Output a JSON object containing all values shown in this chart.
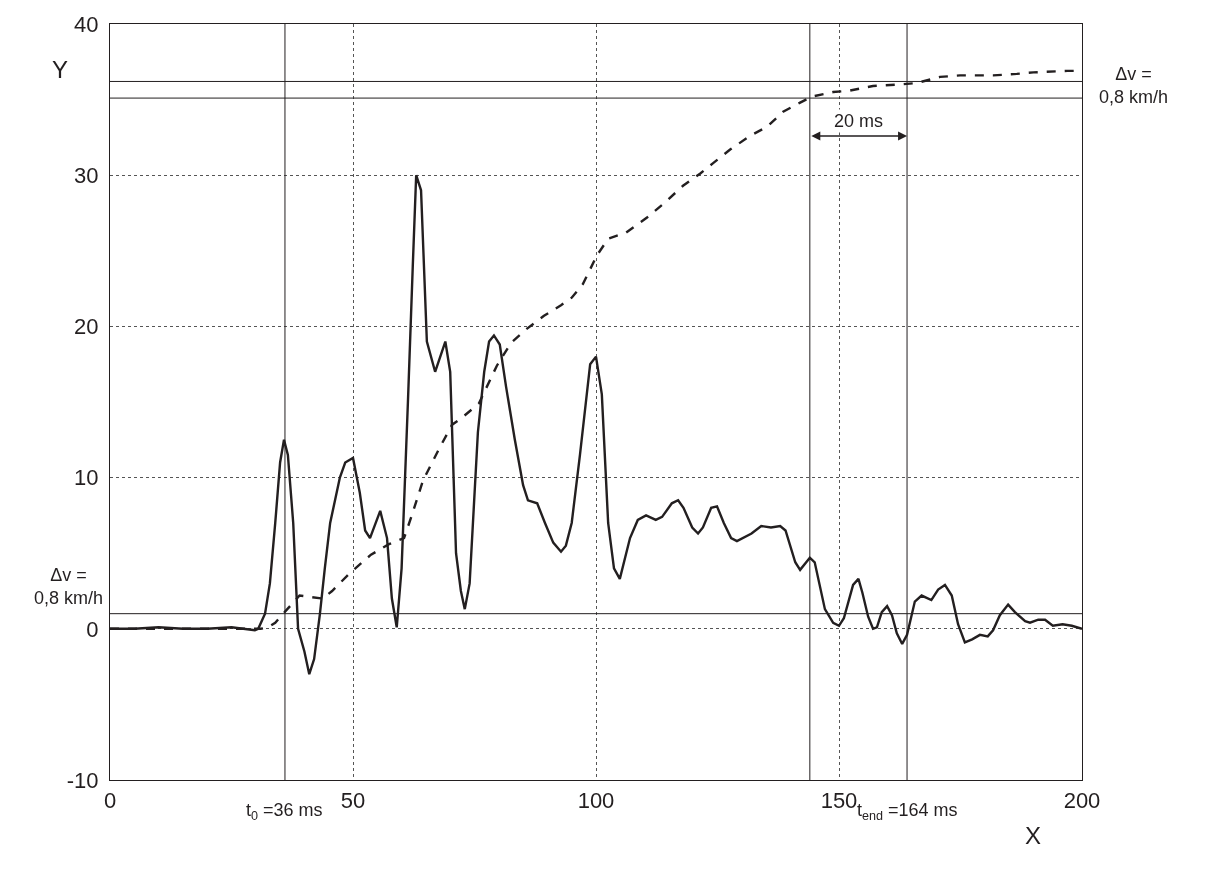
{
  "chart_data": {
    "type": "line",
    "xlabel": "X",
    "ylabel": "Y",
    "xlim": [
      0,
      200
    ],
    "xticks": [
      0,
      50,
      100,
      150,
      200
    ],
    "ylim": [
      -10,
      40
    ],
    "yticks": [
      -10,
      0,
      10,
      20,
      30,
      40
    ],
    "grid": true,
    "marker": "none",
    "series": [
      {
        "color": "#231f20",
        "line_style": "solid",
        "x": [
          0,
          5,
          10,
          15,
          20,
          25,
          29.8,
          30.5,
          31.9,
          32.9,
          34,
          35,
          35.8,
          36.6,
          37.7,
          38.7,
          40,
          41,
          42,
          43.2,
          44.2,
          45.3,
          47.3,
          48.4,
          50,
          51.4,
          52.5,
          53.5,
          55.6,
          57,
          58,
          59,
          60,
          61.3,
          62.3,
          63,
          64,
          65.2,
          66.9,
          69,
          70,
          71.2,
          72.2,
          73,
          74,
          75.7,
          77,
          78,
          79,
          80.2,
          81.5,
          83.3,
          85,
          86,
          87.9,
          89.5,
          91.2,
          92.8,
          93.8,
          95,
          96.7,
          98.8,
          100,
          101.2,
          102.5,
          103.7,
          104.9,
          107,
          108.6,
          110.3,
          112.3,
          113.6,
          115.6,
          116.9,
          118,
          119.8,
          121,
          122,
          123.7,
          124.9,
          126.3,
          127.8,
          129,
          132,
          134,
          136,
          137.9,
          139,
          141,
          142,
          144,
          145,
          147.1,
          148.8,
          150,
          151,
          152.9,
          154,
          154.8,
          156,
          157,
          157.8,
          158.8,
          159.9,
          160.9,
          161.9,
          163,
          164,
          165.6,
          167,
          169,
          170.4,
          171.8,
          173.2,
          174.5,
          175.9,
          177.4,
          179,
          180.6,
          181.7,
          183.1,
          184.8,
          186.2,
          188.3,
          189.3,
          191,
          192.4,
          194,
          196,
          197.9,
          200
        ],
        "values": [
          0,
          0,
          0.1,
          0,
          0,
          0.1,
          -0.1,
          0,
          1,
          3,
          7,
          11,
          12.5,
          11.5,
          7,
          0,
          -1.5,
          -3,
          -2,
          1,
          4,
          7,
          10,
          11,
          11.3,
          9,
          6.5,
          6,
          7.8,
          6,
          2,
          0.1,
          4,
          15,
          24,
          30,
          29,
          19,
          17,
          19,
          17,
          5,
          2.5,
          1.3,
          3,
          13,
          17,
          19,
          19.4,
          18.8,
          16,
          12.5,
          9.5,
          8.5,
          8.3,
          7,
          5.7,
          5.1,
          5.5,
          7,
          11.5,
          17.5,
          18,
          15.5,
          7,
          4,
          3.3,
          6,
          7.2,
          7.5,
          7.2,
          7.4,
          8.3,
          8.5,
          8,
          6.7,
          6.3,
          6.7,
          8,
          8.1,
          7,
          6,
          5.8,
          6.3,
          6.8,
          6.7,
          6.8,
          6.5,
          4.4,
          3.9,
          4.7,
          4.4,
          1.3,
          0.4,
          0.2,
          0.7,
          2.9,
          3.3,
          2.4,
          0.8,
          0,
          0.1,
          1.1,
          1.5,
          0.9,
          -0.3,
          -1,
          -0.4,
          1.8,
          2.2,
          1.9,
          2.6,
          2.9,
          2.2,
          0.3,
          -0.9,
          -0.7,
          -0.4,
          -0.5,
          -0.1,
          0.9,
          1.6,
          1.1,
          0.5,
          0.4,
          0.6,
          0.6,
          0.2,
          0.3,
          0.2,
          0
        ]
      },
      {
        "color": "#231f20",
        "line_style": "dashed",
        "x": [
          0,
          10,
          20,
          31,
          32.5,
          34,
          36.2,
          39,
          43.8,
          45.7,
          49.4,
          53.7,
          57.4,
          60.5,
          62,
          64.4,
          67.7,
          70.4,
          72.2,
          75.9,
          79.6,
          82.5,
          85.6,
          89.3,
          92.8,
          95,
          97.3,
          100.2,
          102.5,
          106.2,
          110.5,
          114.2,
          117.9,
          121.4,
          124.1,
          127.6,
          131.7,
          135.2,
          138.5,
          142,
          144.4,
          148.8,
          152.3,
          157,
          162.6,
          166,
          170.8,
          174.9,
          179,
          181.7,
          186.6,
          190,
          197,
          200
        ],
        "values": [
          0,
          0,
          0,
          0,
          0.1,
          0.4,
          1.2,
          2.2,
          2,
          2.5,
          3.7,
          4.9,
          5.6,
          6,
          7.4,
          9.8,
          11.9,
          13.5,
          13.9,
          14.9,
          17.4,
          18.9,
          19.8,
          20.7,
          21.4,
          21.9,
          22.8,
          24.7,
          25.8,
          26.2,
          27.2,
          28.2,
          29.3,
          30.1,
          30.8,
          31.7,
          32.6,
          33.2,
          34.2,
          34.8,
          35.2,
          35.5,
          35.6,
          35.9,
          36,
          36.1,
          36.5,
          36.6,
          36.6,
          36.6,
          36.7,
          36.8,
          36.9,
          36.9
        ]
      }
    ],
    "ref_lines": [
      {
        "axis": "x",
        "value": 36,
        "label": "t$_{0}$ =36 ms",
        "color": "#231f20",
        "line_style": "solid"
      },
      {
        "axis": "x",
        "value": 164,
        "label": "t$_{end}$ =164 ms",
        "color": "#231f20",
        "line_style": "solid"
      },
      {
        "axis": "x",
        "value": 144,
        "color": "#231f20",
        "line_style": "solid"
      },
      {
        "axis": "y",
        "value": 1.0,
        "color": "#231f20",
        "line_style": "solid"
      },
      {
        "axis": "y",
        "value": 35.1,
        "color": "#231f20",
        "line_style": "solid"
      },
      {
        "axis": "y",
        "value": 36.2,
        "color": "#231f20",
        "line_style": "solid"
      }
    ],
    "annotations": [
      "Δv =\n0,8 km/h",
      "Δv =\n0,8 km/h",
      "20 ms"
    ]
  }
}
